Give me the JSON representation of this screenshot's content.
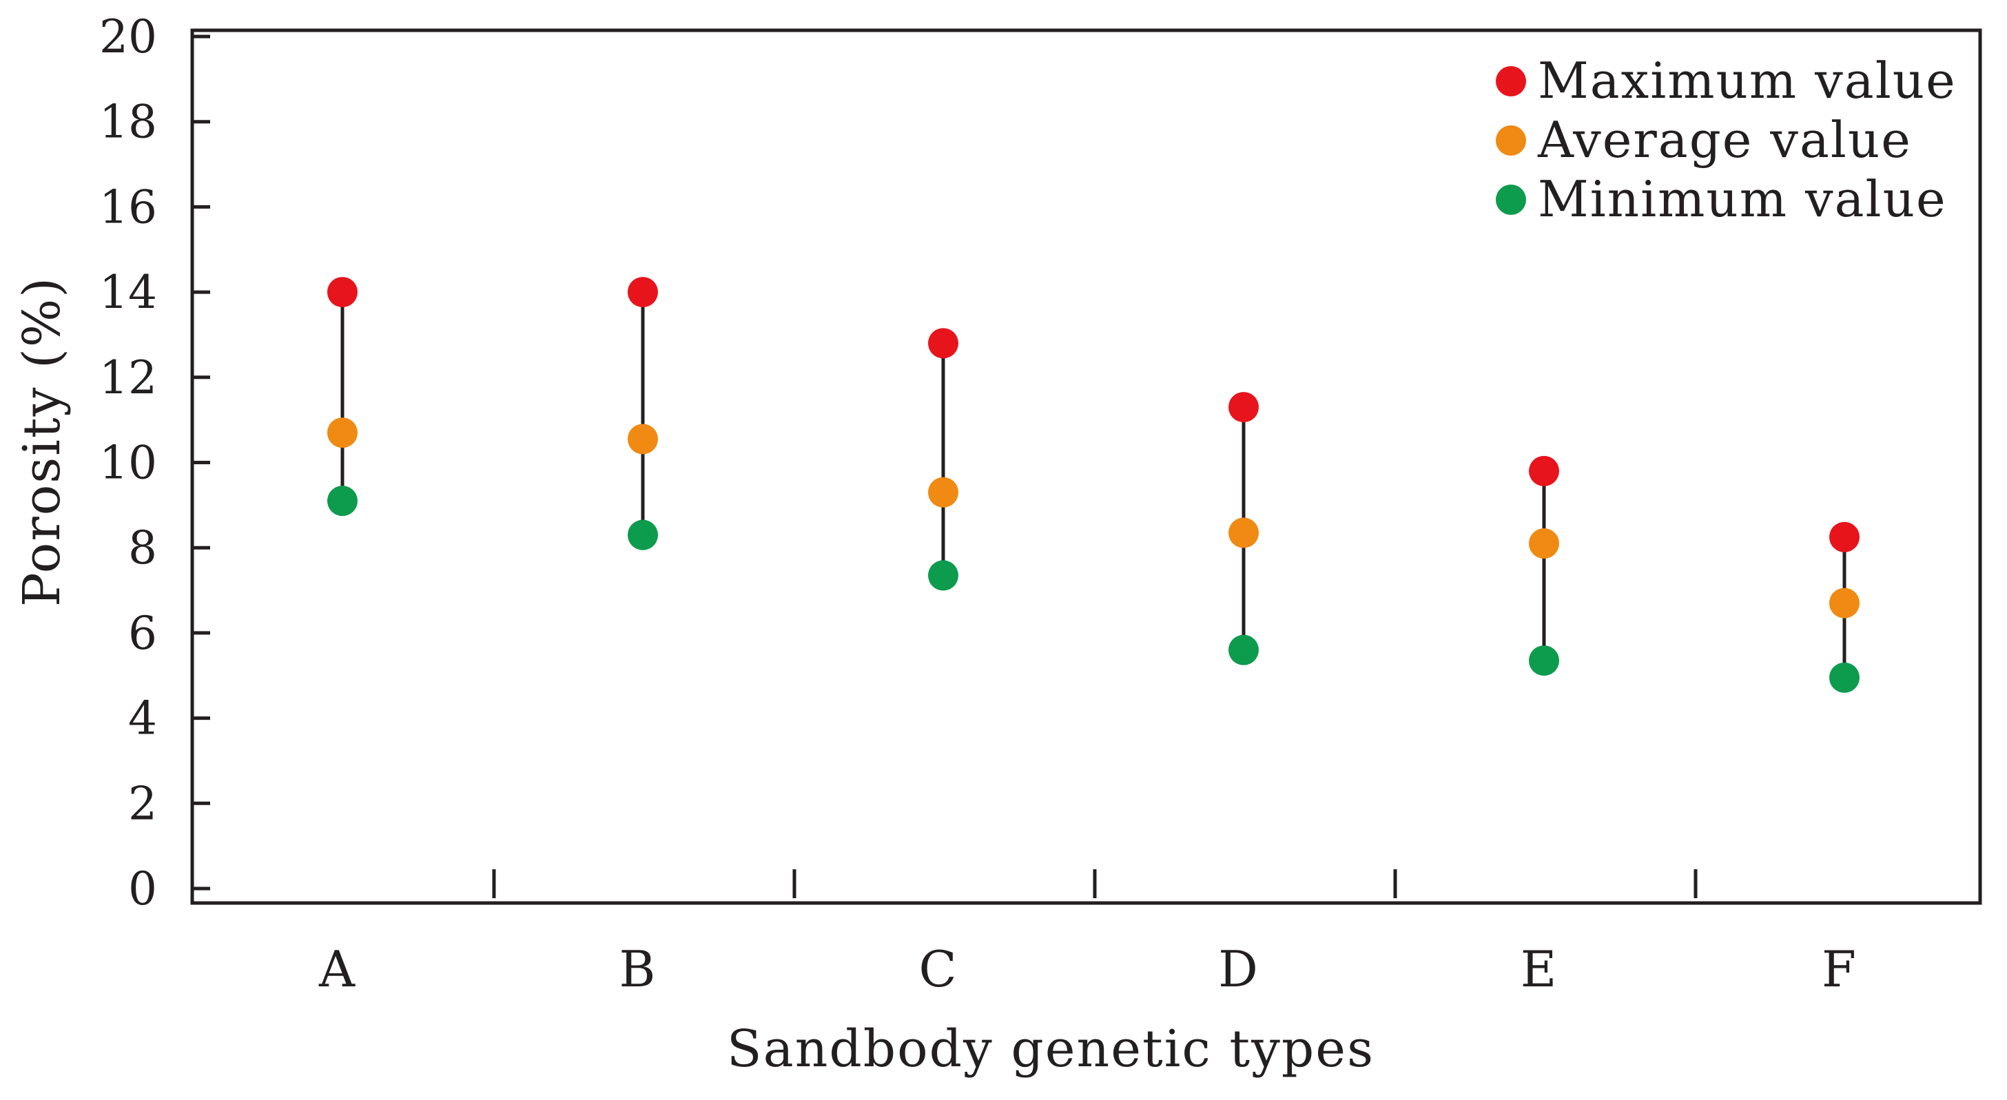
{
  "chart_data": {
    "type": "scatter",
    "title": "",
    "xlabel": "Sandbody genetic types",
    "ylabel": "Porosity (%)",
    "categories": [
      "A",
      "B",
      "C",
      "D",
      "E",
      "F"
    ],
    "ylim": [
      0,
      20
    ],
    "yticks": [
      "0",
      "2",
      "4",
      "6",
      "8",
      "10",
      "12",
      "14",
      "16",
      "18",
      "20"
    ],
    "grid": false,
    "legend_position": "top-right",
    "series": [
      {
        "name": "Maximum value",
        "color": "#e8141c",
        "values": [
          14.0,
          14.0,
          12.8,
          11.3,
          9.8,
          8.25
        ]
      },
      {
        "name": "Average value",
        "color": "#f08a12",
        "values": [
          10.7,
          10.55,
          9.3,
          8.35,
          8.1,
          6.7
        ]
      },
      {
        "name": "Minimum value",
        "color": "#0d9b4e",
        "values": [
          9.1,
          8.3,
          7.35,
          5.6,
          5.35,
          4.95
        ]
      }
    ]
  }
}
